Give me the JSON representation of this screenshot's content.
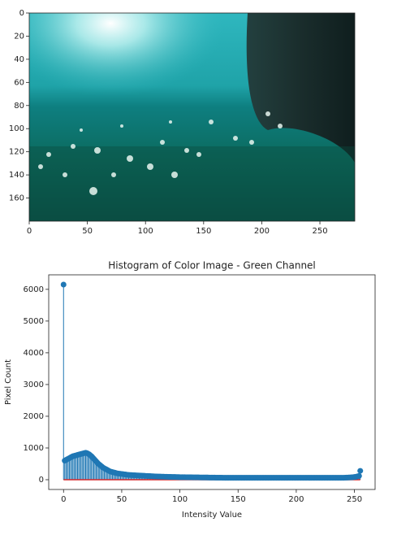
{
  "chart_data": [
    {
      "type": "image",
      "xlim": [
        0,
        280
      ],
      "ylim": [
        180,
        0
      ],
      "xticks": [
        0,
        50,
        100,
        150,
        200,
        250
      ],
      "yticks": [
        0,
        20,
        40,
        60,
        80,
        100,
        120,
        140,
        160
      ]
    },
    {
      "type": "stem",
      "title": "Histogram of Color Image - Green Channel",
      "xlabel": "Intensity Value",
      "ylabel": "Pixel Count",
      "color": "#1f77b4",
      "baseline_color": "#d62728",
      "xlim": [
        -12.75,
        267.75
      ],
      "ylim": [
        -307.5,
        6457.5
      ],
      "xticks": [
        0,
        50,
        100,
        150,
        200,
        250
      ],
      "yticks": [
        0,
        1000,
        2000,
        3000,
        4000,
        5000,
        6000
      ],
      "x": [
        0,
        1,
        2,
        3,
        4,
        5,
        6,
        7,
        8,
        9,
        10,
        11,
        12,
        13,
        14,
        15,
        16,
        17,
        18,
        19,
        20,
        21,
        22,
        23,
        24,
        25,
        26,
        27,
        28,
        29,
        30,
        31,
        32,
        33,
        34,
        35,
        36,
        37,
        38,
        39,
        40,
        41,
        42,
        43,
        44,
        45,
        46,
        47,
        48,
        49,
        50,
        51,
        52,
        53,
        54,
        55,
        56,
        57,
        58,
        59,
        60,
        61,
        62,
        63,
        64,
        65,
        66,
        67,
        68,
        69,
        70,
        71,
        72,
        73,
        74,
        75,
        76,
        77,
        78,
        79,
        80,
        81,
        82,
        83,
        84,
        85,
        86,
        87,
        88,
        89,
        90,
        91,
        92,
        93,
        94,
        95,
        96,
        97,
        98,
        99,
        100,
        101,
        102,
        103,
        104,
        105,
        106,
        107,
        108,
        109,
        110,
        111,
        112,
        113,
        114,
        115,
        116,
        117,
        118,
        119,
        120,
        121,
        122,
        123,
        124,
        125,
        126,
        127,
        128,
        129,
        130,
        131,
        132,
        133,
        134,
        135,
        136,
        137,
        138,
        139,
        140,
        141,
        142,
        143,
        144,
        145,
        146,
        147,
        148,
        149,
        150,
        151,
        152,
        153,
        154,
        155,
        156,
        157,
        158,
        159,
        160,
        161,
        162,
        163,
        164,
        165,
        166,
        167,
        168,
        169,
        170,
        171,
        172,
        173,
        174,
        175,
        176,
        177,
        178,
        179,
        180,
        181,
        182,
        183,
        184,
        185,
        186,
        187,
        188,
        189,
        190,
        191,
        192,
        193,
        194,
        195,
        196,
        197,
        198,
        199,
        200,
        201,
        202,
        203,
        204,
        205,
        206,
        207,
        208,
        209,
        210,
        211,
        212,
        213,
        214,
        215,
        216,
        217,
        218,
        219,
        220,
        221,
        222,
        223,
        224,
        225,
        226,
        227,
        228,
        229,
        230,
        231,
        232,
        233,
        234,
        235,
        236,
        237,
        238,
        239,
        240,
        241,
        242,
        243,
        244,
        245,
        246,
        247,
        248,
        249,
        250,
        251,
        252,
        253,
        254,
        255
      ],
      "values": [
        6150,
        600,
        620,
        640,
        660,
        680,
        700,
        720,
        740,
        750,
        760,
        770,
        780,
        790,
        800,
        810,
        820,
        830,
        840,
        850,
        840,
        820,
        800,
        770,
        740,
        700,
        660,
        620,
        580,
        540,
        500,
        470,
        440,
        410,
        380,
        360,
        340,
        320,
        300,
        280,
        260,
        250,
        240,
        230,
        220,
        210,
        200,
        195,
        190,
        185,
        180,
        175,
        170,
        165,
        160,
        155,
        150,
        148,
        146,
        144,
        142,
        140,
        138,
        136,
        134,
        132,
        130,
        128,
        126,
        124,
        122,
        120,
        118,
        116,
        114,
        112,
        110,
        108,
        106,
        104,
        102,
        100,
        99,
        98,
        97,
        96,
        95,
        94,
        93,
        92,
        91,
        90,
        89,
        88,
        87,
        86,
        85,
        84,
        83,
        82,
        81,
        80,
        80,
        79,
        79,
        78,
        78,
        77,
        77,
        76,
        76,
        75,
        75,
        74,
        74,
        73,
        73,
        72,
        72,
        71,
        71,
        70,
        70,
        69,
        69,
        68,
        68,
        67,
        67,
        66,
        66,
        65,
        65,
        64,
        64,
        63,
        63,
        62,
        62,
        61,
        61,
        60,
        60,
        60,
        60,
        60,
        60,
        60,
        60,
        60,
        60,
        60,
        60,
        60,
        60,
        60,
        60,
        60,
        60,
        60,
        60,
        60,
        60,
        60,
        60,
        60,
        60,
        60,
        60,
        60,
        60,
        60,
        60,
        60,
        60,
        60,
        60,
        60,
        60,
        60,
        60,
        60,
        60,
        60,
        60,
        60,
        60,
        60,
        60,
        60,
        60,
        60,
        60,
        60,
        60,
        60,
        60,
        60,
        60,
        60,
        60,
        60,
        60,
        60,
        60,
        60,
        60,
        60,
        60,
        60,
        60,
        60,
        60,
        60,
        60,
        60,
        60,
        60,
        60,
        60,
        60,
        60,
        60,
        60,
        60,
        60,
        60,
        60,
        60,
        60,
        60,
        60,
        60,
        60,
        60,
        60,
        60,
        60,
        60,
        60,
        60,
        62,
        64,
        66,
        68,
        70,
        72,
        74,
        76,
        80,
        85,
        90,
        100,
        110,
        120,
        280
      ]
    }
  ]
}
